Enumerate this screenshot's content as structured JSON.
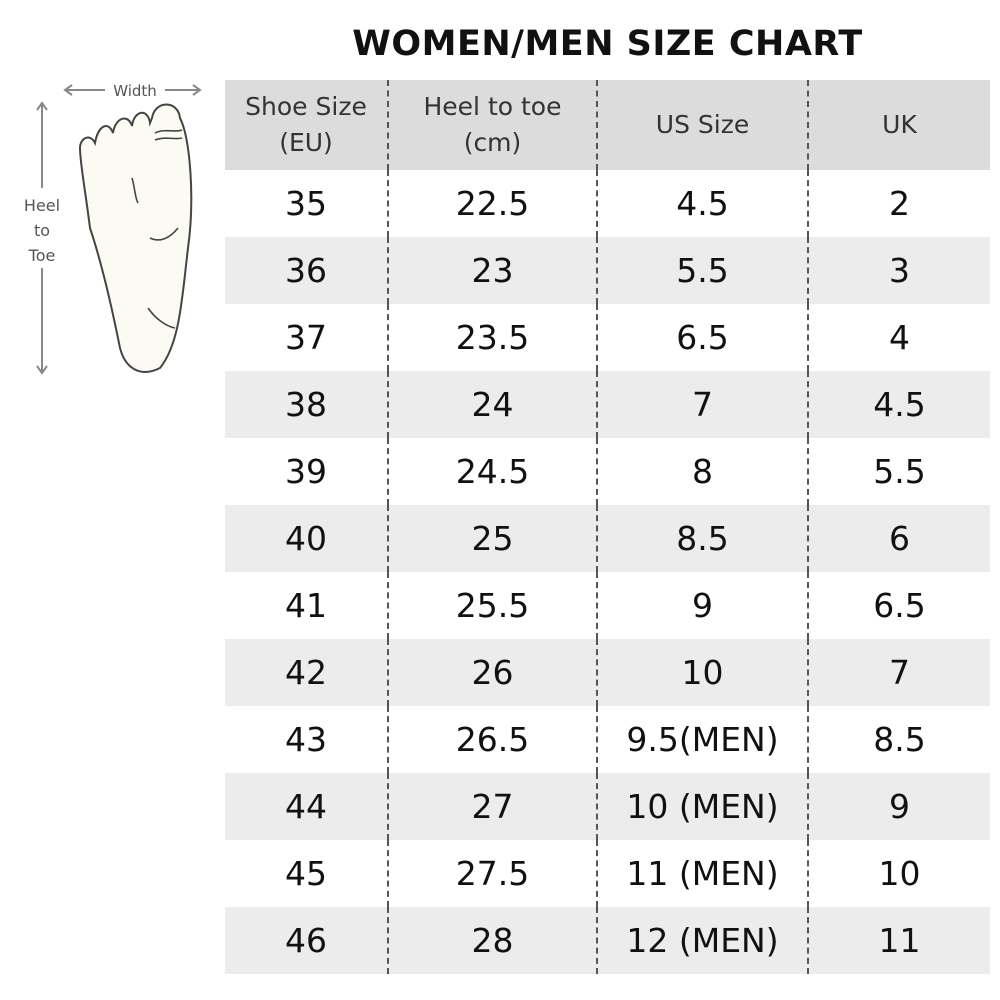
{
  "title": "WOMEN/MEN SIZE CHART",
  "diagram": {
    "width_label": "Width",
    "length_label": "Heel to Toe",
    "icon": "foot-outline-icon"
  },
  "table": {
    "headers": [
      "Shoe Size (EU)",
      "Heel to toe (cm)",
      "US Size",
      "UK"
    ],
    "rows": [
      [
        "35",
        "22.5",
        "4.5",
        "2"
      ],
      [
        "36",
        "23",
        "5.5",
        "3"
      ],
      [
        "37",
        "23.5",
        "6.5",
        "4"
      ],
      [
        "38",
        "24",
        "7",
        "4.5"
      ],
      [
        "39",
        "24.5",
        "8",
        "5.5"
      ],
      [
        "40",
        "25",
        "8.5",
        "6"
      ],
      [
        "41",
        "25.5",
        "9",
        "6.5"
      ],
      [
        "42",
        "26",
        "10",
        "7"
      ],
      [
        "43",
        "26.5",
        "9.5(MEN)",
        "8.5"
      ],
      [
        "44",
        "27",
        "10 (MEN)",
        "9"
      ],
      [
        "45",
        "27.5",
        "11 (MEN)",
        "10"
      ],
      [
        "46",
        "28",
        "12 (MEN)",
        "11"
      ]
    ]
  },
  "colors": {
    "header_bg": "#dcdcdc",
    "alt_row_bg": "#ececec"
  }
}
